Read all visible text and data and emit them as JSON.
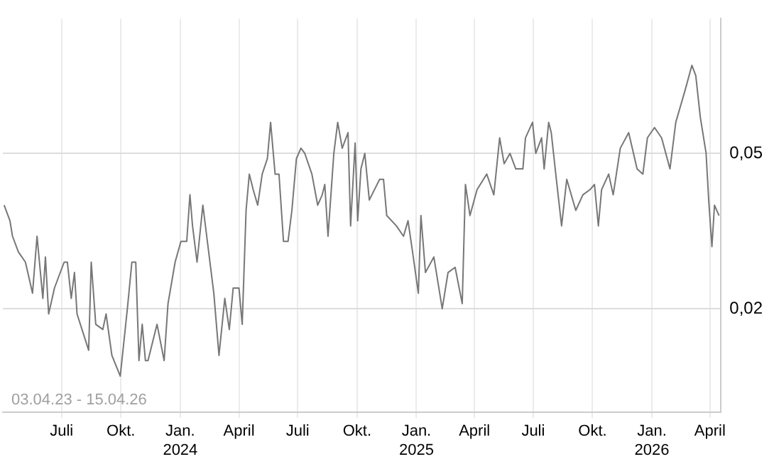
{
  "chart_data": {
    "type": "line",
    "annotations": [
      "03.04.23 - 15.04.26"
    ],
    "x": [
      "2023-04-03",
      "2023-04-12",
      "2023-04-16",
      "2023-04-25",
      "2023-05-06",
      "2023-05-17",
      "2023-05-24",
      "2023-06-02",
      "2023-06-06",
      "2023-06-11",
      "2023-06-20",
      "2023-07-05",
      "2023-07-10",
      "2023-07-16",
      "2023-07-21",
      "2023-07-25",
      "2023-08-12",
      "2023-08-16",
      "2023-08-23",
      "2023-09-03",
      "2023-09-08",
      "2023-09-17",
      "2023-09-30",
      "2023-10-11",
      "2023-10-18",
      "2023-10-24",
      "2023-10-29",
      "2023-11-03",
      "2023-11-08",
      "2023-11-12",
      "2023-11-26",
      "2023-12-07",
      "2023-12-13",
      "2023-12-24",
      "2024-01-02",
      "2024-01-11",
      "2024-01-16",
      "2024-01-20",
      "2024-01-27",
      "2024-02-05",
      "2024-02-11",
      "2024-02-22",
      "2024-03-01",
      "2024-03-10",
      "2024-03-17",
      "2024-03-23",
      "2024-04-01",
      "2024-04-06",
      "2024-04-12",
      "2024-04-17",
      "2024-04-23",
      "2024-04-30",
      "2024-05-07",
      "2024-05-15",
      "2024-05-20",
      "2024-05-27",
      "2024-06-02",
      "2024-06-09",
      "2024-06-16",
      "2024-06-22",
      "2024-06-29",
      "2024-07-06",
      "2024-07-12",
      "2024-07-23",
      "2024-08-01",
      "2024-08-08",
      "2024-08-12",
      "2024-08-17",
      "2024-08-26",
      "2024-09-01",
      "2024-09-08",
      "2024-09-17",
      "2024-09-21",
      "2024-09-28",
      "2024-10-02",
      "2024-10-07",
      "2024-10-13",
      "2024-10-20",
      "2024-11-05",
      "2024-11-11",
      "2024-11-16",
      "2024-12-01",
      "2024-12-12",
      "2024-12-19",
      "2024-12-26",
      "2025-01-04",
      "2025-01-08",
      "2025-01-15",
      "2025-01-28",
      "2025-02-10",
      "2025-02-19",
      "2025-03-02",
      "2025-03-13",
      "2025-03-18",
      "2025-03-25",
      "2025-04-05",
      "2025-04-20",
      "2025-05-01",
      "2025-05-10",
      "2025-05-17",
      "2025-05-26",
      "2025-06-04",
      "2025-06-15",
      "2025-06-19",
      "2025-06-30",
      "2025-07-05",
      "2025-07-14",
      "2025-07-18",
      "2025-07-25",
      "2025-07-29",
      "2025-08-05",
      "2025-08-14",
      "2025-08-22",
      "2025-09-05",
      "2025-09-16",
      "2025-09-27",
      "2025-10-04",
      "2025-10-10",
      "2025-10-15",
      "2025-10-26",
      "2025-11-02",
      "2025-11-13",
      "2025-11-26",
      "2025-12-09",
      "2025-12-18",
      "2025-12-25",
      "2026-01-05",
      "2026-01-16",
      "2026-01-29",
      "2026-02-07",
      "2026-02-14",
      "2026-02-21",
      "2026-03-04",
      "2026-03-10",
      "2026-03-17",
      "2026-03-26",
      "2026-03-30",
      "2026-04-04",
      "2026-04-08",
      "2026-04-15"
    ],
    "series": [
      {
        "color": "#777777",
        "values": [
          0.04,
          0.037,
          0.034,
          0.031,
          0.029,
          0.023,
          0.034,
          0.022,
          0.03,
          0.019,
          0.024,
          0.029,
          0.029,
          0.022,
          0.027,
          0.019,
          0.012,
          0.029,
          0.017,
          0.016,
          0.019,
          0.011,
          0.007,
          0.02,
          0.029,
          0.029,
          0.01,
          0.017,
          0.01,
          0.01,
          0.017,
          0.01,
          0.021,
          0.029,
          0.033,
          0.033,
          0.042,
          0.036,
          0.029,
          0.04,
          0.034,
          0.023,
          0.011,
          0.022,
          0.016,
          0.024,
          0.024,
          0.017,
          0.039,
          0.046,
          0.043,
          0.04,
          0.046,
          0.049,
          0.056,
          0.046,
          0.046,
          0.033,
          0.033,
          0.039,
          0.049,
          0.051,
          0.05,
          0.046,
          0.04,
          0.042,
          0.044,
          0.034,
          0.05,
          0.056,
          0.051,
          0.054,
          0.036,
          0.052,
          0.037,
          0.047,
          0.05,
          0.041,
          0.045,
          0.045,
          0.038,
          0.036,
          0.034,
          0.037,
          0.031,
          0.023,
          0.038,
          0.027,
          0.03,
          0.02,
          0.027,
          0.028,
          0.021,
          0.044,
          0.038,
          0.043,
          0.046,
          0.042,
          0.053,
          0.048,
          0.05,
          0.047,
          0.047,
          0.053,
          0.056,
          0.05,
          0.053,
          0.047,
          0.056,
          0.054,
          0.046,
          0.036,
          0.045,
          0.039,
          0.042,
          0.043,
          0.044,
          0.036,
          0.043,
          0.046,
          0.042,
          0.051,
          0.054,
          0.047,
          0.046,
          0.053,
          0.055,
          0.053,
          0.047,
          0.056,
          0.059,
          0.062,
          0.067,
          0.065,
          0.057,
          0.05,
          0.041,
          0.032,
          0.04,
          0.038
        ]
      }
    ],
    "xlim": [
      "2023-04-01",
      "2026-04-18"
    ],
    "xticks": [
      {
        "value": "2023-07-01",
        "label": "Juli"
      },
      {
        "value": "2023-10-01",
        "label": "Okt."
      },
      {
        "value": "2024-01-01",
        "label": "Jan.\n2024"
      },
      {
        "value": "2024-04-01",
        "label": "April"
      },
      {
        "value": "2024-07-01",
        "label": "Juli"
      },
      {
        "value": "2024-10-01",
        "label": "Okt."
      },
      {
        "value": "2025-01-01",
        "label": "Jan.\n2025"
      },
      {
        "value": "2025-04-01",
        "label": "April"
      },
      {
        "value": "2025-07-01",
        "label": "Juli"
      },
      {
        "value": "2025-10-01",
        "label": "Okt."
      },
      {
        "value": "2026-01-01",
        "label": "Jan.\n2026"
      },
      {
        "value": "2026-04-01",
        "label": "April"
      }
    ],
    "ylim": [
      0,
      0.076
    ],
    "yticks": [
      {
        "value": 0.02,
        "label": "0,02"
      },
      {
        "value": 0.05,
        "label": "0,05"
      }
    ],
    "grid": true,
    "legend": false,
    "marker": "none",
    "line_style": "solid"
  }
}
